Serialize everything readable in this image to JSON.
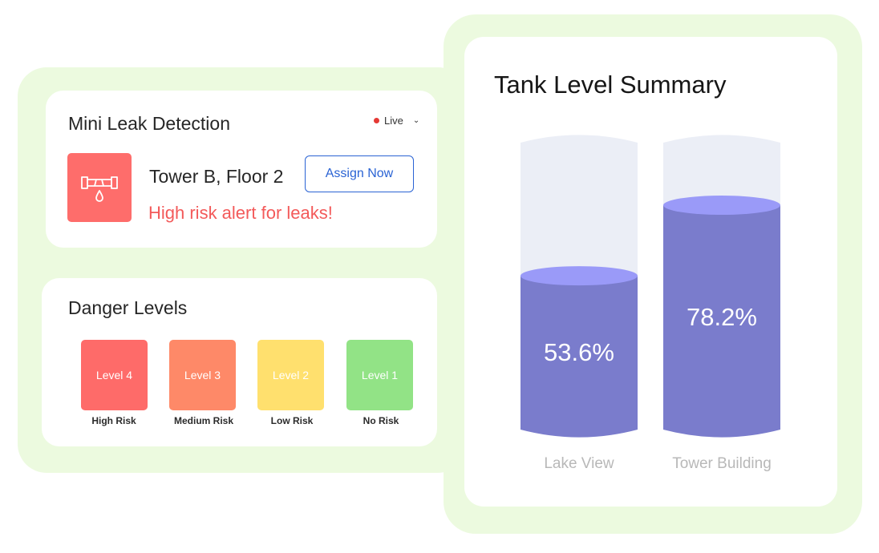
{
  "leak": {
    "title": "Mini Leak Detection",
    "live_label": "Live",
    "location": "Tower B, Floor 2",
    "alert": "High risk alert for leaks!",
    "assign_label": "Assign Now"
  },
  "danger": {
    "title": "Danger Levels",
    "levels": [
      {
        "label": "Level 4",
        "risk": "High Risk",
        "color": "#fe6b69"
      },
      {
        "label": "Level 3",
        "risk": "Medium Risk",
        "color": "#fe8968"
      },
      {
        "label": "Level 2",
        "risk": "Low Risk",
        "color": "#ffe06e"
      },
      {
        "label": "Level 1",
        "risk": "No Risk",
        "color": "#92e386"
      }
    ]
  },
  "tanks": {
    "title": "Tank Level Summary",
    "items": [
      {
        "name": "Lake View",
        "percent_label": "53.6%",
        "level": 0.536
      },
      {
        "name": "Tower Building",
        "percent_label": "78.2%",
        "level": 0.782
      }
    ],
    "colors": {
      "fill": "#7a7ccc",
      "top": "#9a9af8",
      "empty": "#ebeef6"
    }
  },
  "icons": {
    "pipe": "pipe-leak-icon",
    "live_dot": "live-dot-icon",
    "chevron": "chevron-down-icon"
  }
}
